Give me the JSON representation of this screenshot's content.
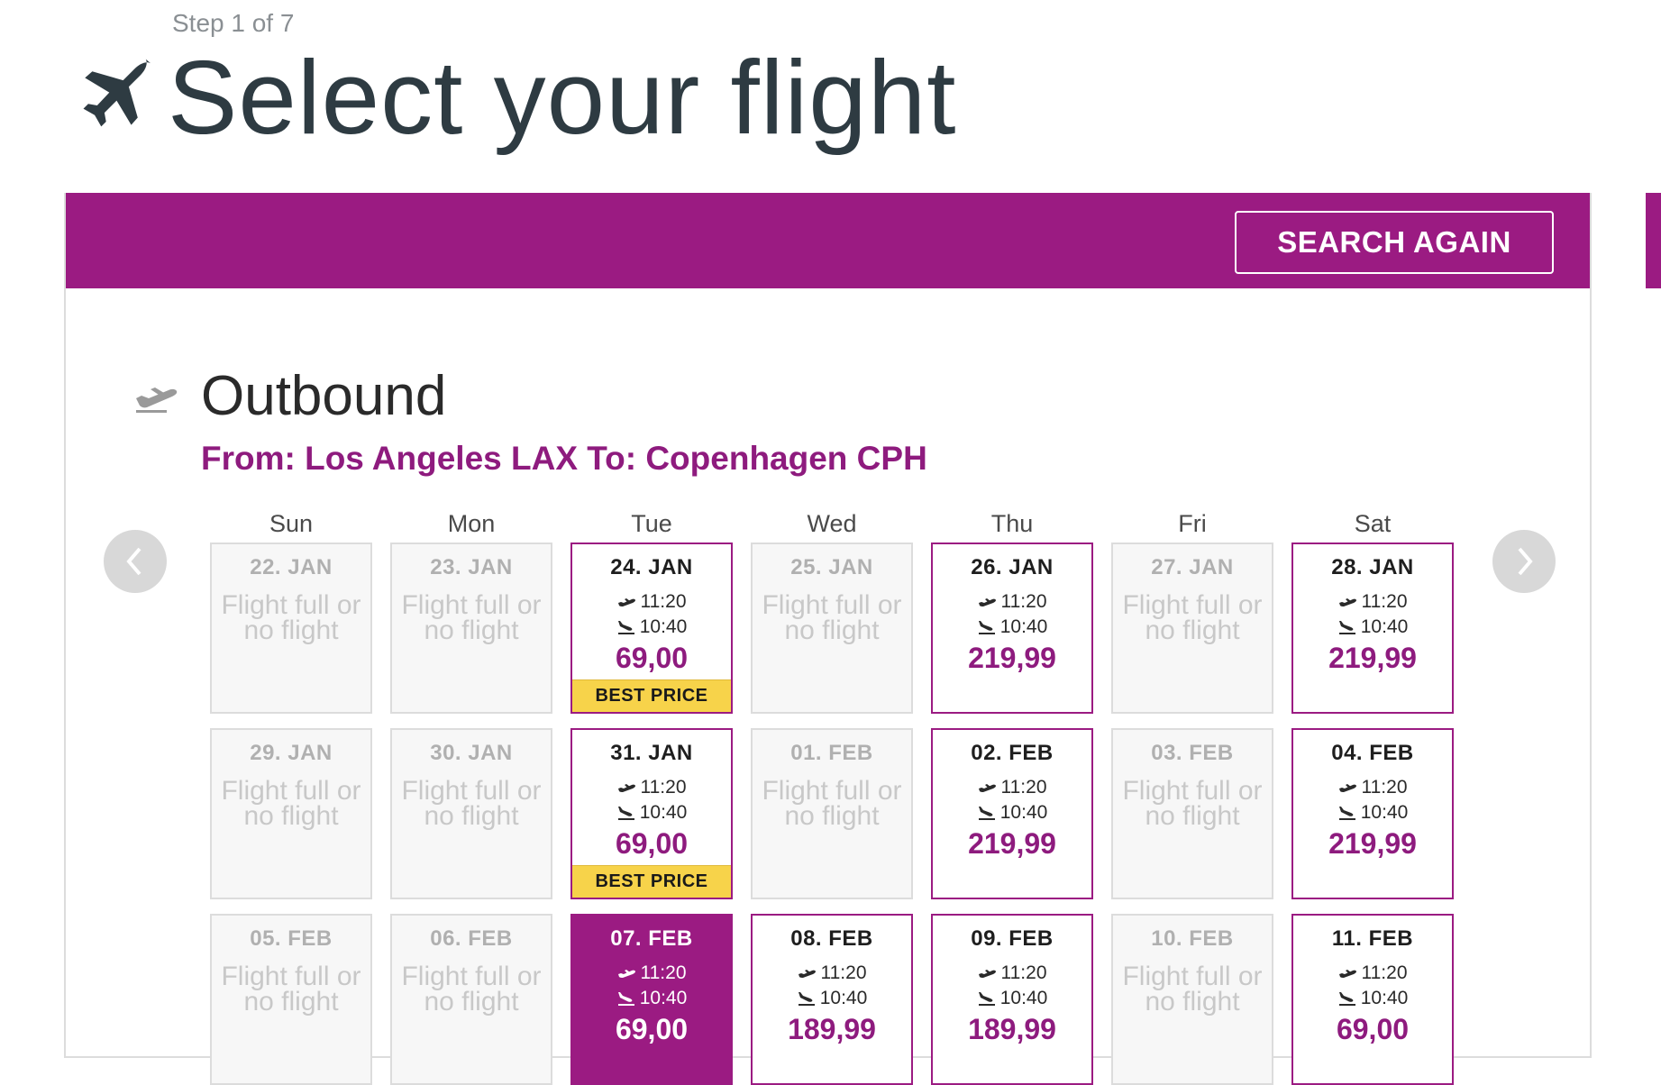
{
  "header": {
    "step": "Step 1 of 7",
    "title": "Select your flight"
  },
  "toolbar": {
    "search_again": "SEARCH AGAIN"
  },
  "outbound": {
    "title": "Outbound",
    "route": "From: Los Angeles LAX To: Copenhagen CPH"
  },
  "calendar": {
    "weekdays": [
      "Sun",
      "Mon",
      "Tue",
      "Wed",
      "Thu",
      "Fri",
      "Sat"
    ],
    "unavailable_text": "Flight full or no flight",
    "badge_text": "BEST PRICE",
    "weeks": [
      [
        {
          "date": "22. JAN",
          "status": "unavailable"
        },
        {
          "date": "23. JAN",
          "status": "unavailable"
        },
        {
          "date": "24. JAN",
          "status": "available",
          "depart": "11:20",
          "arrive": "10:40",
          "price": "69,00",
          "best": true
        },
        {
          "date": "25. JAN",
          "status": "unavailable"
        },
        {
          "date": "26. JAN",
          "status": "available",
          "depart": "11:20",
          "arrive": "10:40",
          "price": "219,99"
        },
        {
          "date": "27. JAN",
          "status": "unavailable"
        },
        {
          "date": "28. JAN",
          "status": "available",
          "depart": "11:20",
          "arrive": "10:40",
          "price": "219,99"
        }
      ],
      [
        {
          "date": "29. JAN",
          "status": "unavailable"
        },
        {
          "date": "30. JAN",
          "status": "unavailable"
        },
        {
          "date": "31. JAN",
          "status": "available",
          "depart": "11:20",
          "arrive": "10:40",
          "price": "69,00",
          "best": true
        },
        {
          "date": "01. FEB",
          "status": "unavailable"
        },
        {
          "date": "02. FEB",
          "status": "available",
          "depart": "11:20",
          "arrive": "10:40",
          "price": "219,99"
        },
        {
          "date": "03. FEB",
          "status": "unavailable"
        },
        {
          "date": "04. FEB",
          "status": "available",
          "depart": "11:20",
          "arrive": "10:40",
          "price": "219,99"
        }
      ],
      [
        {
          "date": "05. FEB",
          "status": "unavailable"
        },
        {
          "date": "06. FEB",
          "status": "unavailable"
        },
        {
          "date": "07. FEB",
          "status": "selected",
          "depart": "11:20",
          "arrive": "10:40",
          "price": "69,00"
        },
        {
          "date": "08. FEB",
          "status": "available",
          "depart": "11:20",
          "arrive": "10:40",
          "price": "189,99"
        },
        {
          "date": "09. FEB",
          "status": "available",
          "depart": "11:20",
          "arrive": "10:40",
          "price": "189,99"
        },
        {
          "date": "10. FEB",
          "status": "unavailable"
        },
        {
          "date": "11. FEB",
          "status": "available",
          "depart": "11:20",
          "arrive": "10:40",
          "price": "69,00"
        }
      ]
    ]
  },
  "colors": {
    "brand": "#9b1b82",
    "price": "#8e1b7e",
    "badge": "#f7d34a",
    "disabled_bg": "#f7f7f7"
  },
  "icons": {
    "title": "airplane-icon",
    "outbound": "departure-icon",
    "prev": "chevron-left-icon",
    "next": "chevron-right-icon"
  }
}
